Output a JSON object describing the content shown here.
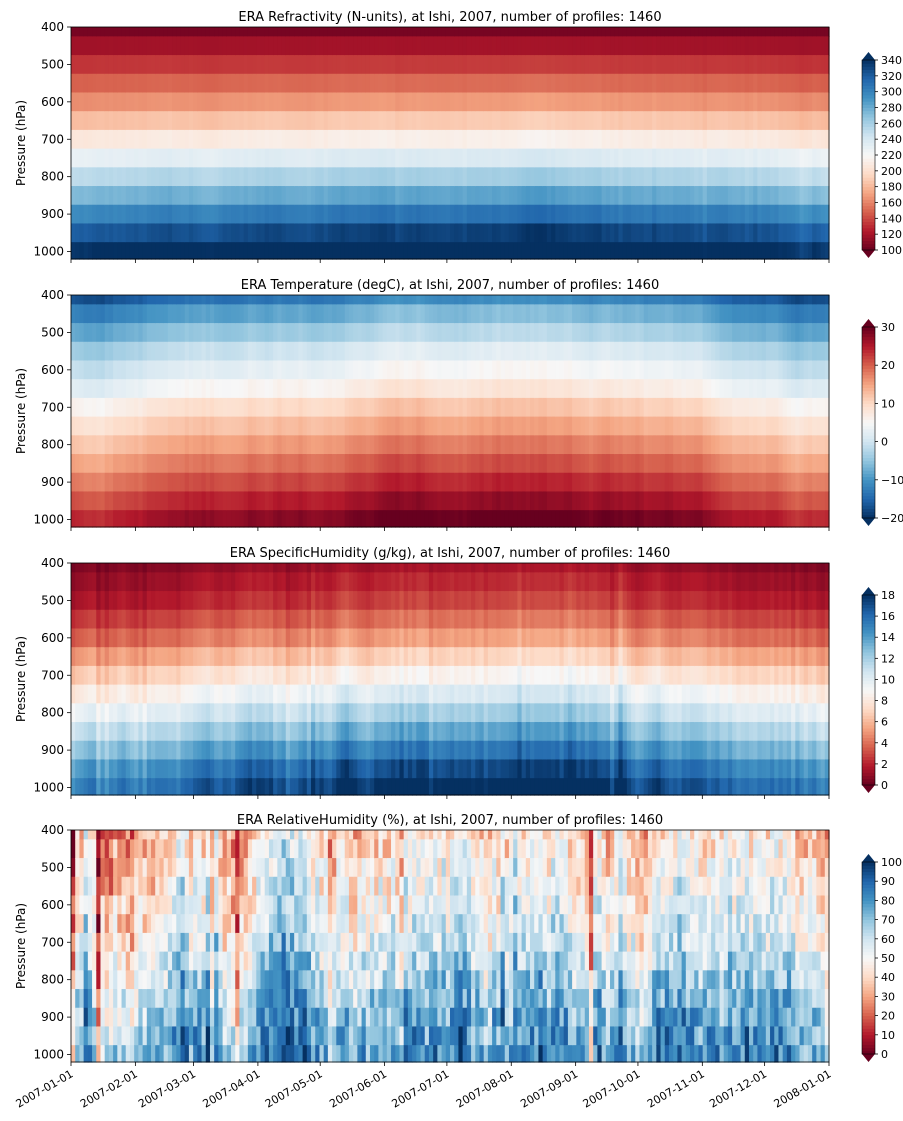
{
  "chart_data": [
    {
      "type": "heatmap",
      "title": "ERA Refractivity (N-units), at Ishi, 2007, number of profiles: 1460",
      "ylabel": "Pressure (hPa)",
      "xlabel": "",
      "ylim": [
        1020,
        400
      ],
      "y_ticks": [
        "400",
        "500",
        "600",
        "700",
        "800",
        "900",
        "1000"
      ],
      "colorbar": {
        "min": 100,
        "max": 340,
        "ticks": [
          "100",
          "120",
          "140",
          "160",
          "180",
          "200",
          "220",
          "240",
          "260",
          "280",
          "300",
          "320",
          "340"
        ],
        "colormap": "RdBu",
        "extend": "both"
      },
      "profile_by_level": [
        {
          "pressure": 400,
          "value": 105
        },
        {
          "pressure": 450,
          "value": 118
        },
        {
          "pressure": 500,
          "value": 133
        },
        {
          "pressure": 550,
          "value": 148
        },
        {
          "pressure": 600,
          "value": 163
        },
        {
          "pressure": 650,
          "value": 182
        },
        {
          "pressure": 700,
          "value": 205
        },
        {
          "pressure": 750,
          "value": 228
        },
        {
          "pressure": 800,
          "value": 250
        },
        {
          "pressure": 850,
          "value": 272
        },
        {
          "pressure": 900,
          "value": 295
        },
        {
          "pressure": 950,
          "value": 318
        },
        {
          "pressure": 1000,
          "value": 336
        }
      ]
    },
    {
      "type": "heatmap",
      "title": "ERA Temperature (degC), at Ishi, 2007, number of profiles: 1460",
      "ylabel": "Pressure (hPa)",
      "xlabel": "",
      "ylim": [
        1020,
        400
      ],
      "y_ticks": [
        "400",
        "500",
        "600",
        "700",
        "800",
        "900",
        "1000"
      ],
      "colorbar": {
        "min": -20,
        "max": 30,
        "ticks": [
          "-20",
          "-10",
          "0",
          "10",
          "20",
          "30"
        ],
        "colormap": "RdBu_r",
        "extend": "both"
      },
      "profile_by_level": [
        {
          "pressure": 400,
          "value": -17
        },
        {
          "pressure": 450,
          "value": -12
        },
        {
          "pressure": 500,
          "value": -8
        },
        {
          "pressure": 550,
          "value": -4
        },
        {
          "pressure": 600,
          "value": -1
        },
        {
          "pressure": 650,
          "value": 2
        },
        {
          "pressure": 700,
          "value": 6
        },
        {
          "pressure": 750,
          "value": 9
        },
        {
          "pressure": 800,
          "value": 12
        },
        {
          "pressure": 850,
          "value": 15
        },
        {
          "pressure": 900,
          "value": 18
        },
        {
          "pressure": 950,
          "value": 21
        },
        {
          "pressure": 1000,
          "value": 24
        }
      ]
    },
    {
      "type": "heatmap",
      "title": "ERA SpecificHumidity (g/kg), at Ishi, 2007, number of profiles: 1460",
      "ylabel": "Pressure (hPa)",
      "xlabel": "",
      "ylim": [
        1020,
        400
      ],
      "y_ticks": [
        "400",
        "500",
        "600",
        "700",
        "800",
        "900",
        "1000"
      ],
      "colorbar": {
        "min": 0,
        "max": 18,
        "ticks": [
          "0",
          "2",
          "4",
          "6",
          "8",
          "10",
          "12",
          "14",
          "16",
          "18"
        ],
        "colormap": "RdBu",
        "extend": "both"
      },
      "profile_by_level": [
        {
          "pressure": 400,
          "value": 0.5
        },
        {
          "pressure": 450,
          "value": 1
        },
        {
          "pressure": 500,
          "value": 1.5
        },
        {
          "pressure": 550,
          "value": 2.5
        },
        {
          "pressure": 600,
          "value": 3.5
        },
        {
          "pressure": 650,
          "value": 5
        },
        {
          "pressure": 700,
          "value": 6.5
        },
        {
          "pressure": 750,
          "value": 8
        },
        {
          "pressure": 800,
          "value": 9.5
        },
        {
          "pressure": 850,
          "value": 11
        },
        {
          "pressure": 900,
          "value": 12.5
        },
        {
          "pressure": 950,
          "value": 14
        },
        {
          "pressure": 1000,
          "value": 15
        }
      ]
    },
    {
      "type": "heatmap",
      "title": "ERA RelativeHumidity (%), at Ishi, 2007, number of profiles: 1460",
      "ylabel": "Pressure (hPa)",
      "xlabel": "",
      "ylim": [
        1020,
        400
      ],
      "y_ticks": [
        "400",
        "500",
        "600",
        "700",
        "800",
        "900",
        "1000"
      ],
      "colorbar": {
        "min": 0,
        "max": 100,
        "ticks": [
          "0",
          "10",
          "20",
          "30",
          "40",
          "50",
          "60",
          "70",
          "80",
          "90",
          "100"
        ],
        "colormap": "RdBu",
        "extend": "both"
      },
      "profile_by_level": [
        {
          "pressure": 400,
          "value": 40
        },
        {
          "pressure": 450,
          "value": 42
        },
        {
          "pressure": 500,
          "value": 45
        },
        {
          "pressure": 550,
          "value": 48
        },
        {
          "pressure": 600,
          "value": 50
        },
        {
          "pressure": 650,
          "value": 53
        },
        {
          "pressure": 700,
          "value": 56
        },
        {
          "pressure": 750,
          "value": 60
        },
        {
          "pressure": 800,
          "value": 64
        },
        {
          "pressure": 850,
          "value": 68
        },
        {
          "pressure": 900,
          "value": 72
        },
        {
          "pressure": 950,
          "value": 75
        },
        {
          "pressure": 1000,
          "value": 78
        }
      ]
    }
  ],
  "x_axis": {
    "ticks": [
      "2007-01-01",
      "2007-02-01",
      "2007-03-01",
      "2007-04-01",
      "2007-05-01",
      "2007-06-01",
      "2007-07-01",
      "2007-08-01",
      "2007-09-01",
      "2007-10-01",
      "2007-11-01",
      "2007-12-01",
      "2008-01-01"
    ],
    "range": [
      "2007-01-01",
      "2008-01-01"
    ]
  }
}
